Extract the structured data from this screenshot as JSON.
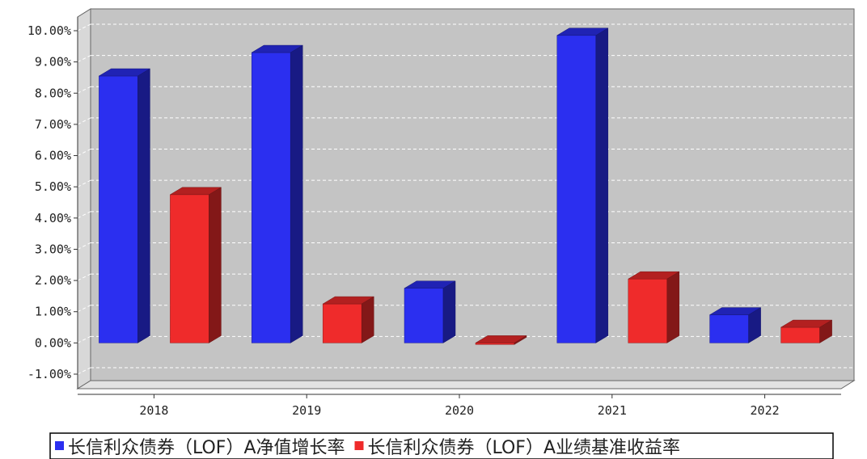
{
  "chart_data": {
    "type": "bar",
    "categories": [
      "2018",
      "2019",
      "2020",
      "2021",
      "2022"
    ],
    "series": [
      {
        "name": "长信利众债券（LOF）A净值增长率",
        "color": "#2b2ff0",
        "values": [
          8.55,
          9.3,
          1.75,
          9.85,
          0.9
        ]
      },
      {
        "name": "长信利众债券（LOF）A业绩基准收益率",
        "color": "#ef2b2b",
        "values": [
          4.75,
          1.25,
          -0.05,
          2.05,
          0.5
        ]
      }
    ],
    "ylim": [
      -1.0,
      10.0
    ],
    "yticks": [
      "-1.00%",
      "0.00%",
      "1.00%",
      "2.00%",
      "3.00%",
      "4.00%",
      "5.00%",
      "6.00%",
      "7.00%",
      "8.00%",
      "9.00%",
      "10.00%"
    ],
    "grid": true,
    "legend_position": "bottom"
  }
}
